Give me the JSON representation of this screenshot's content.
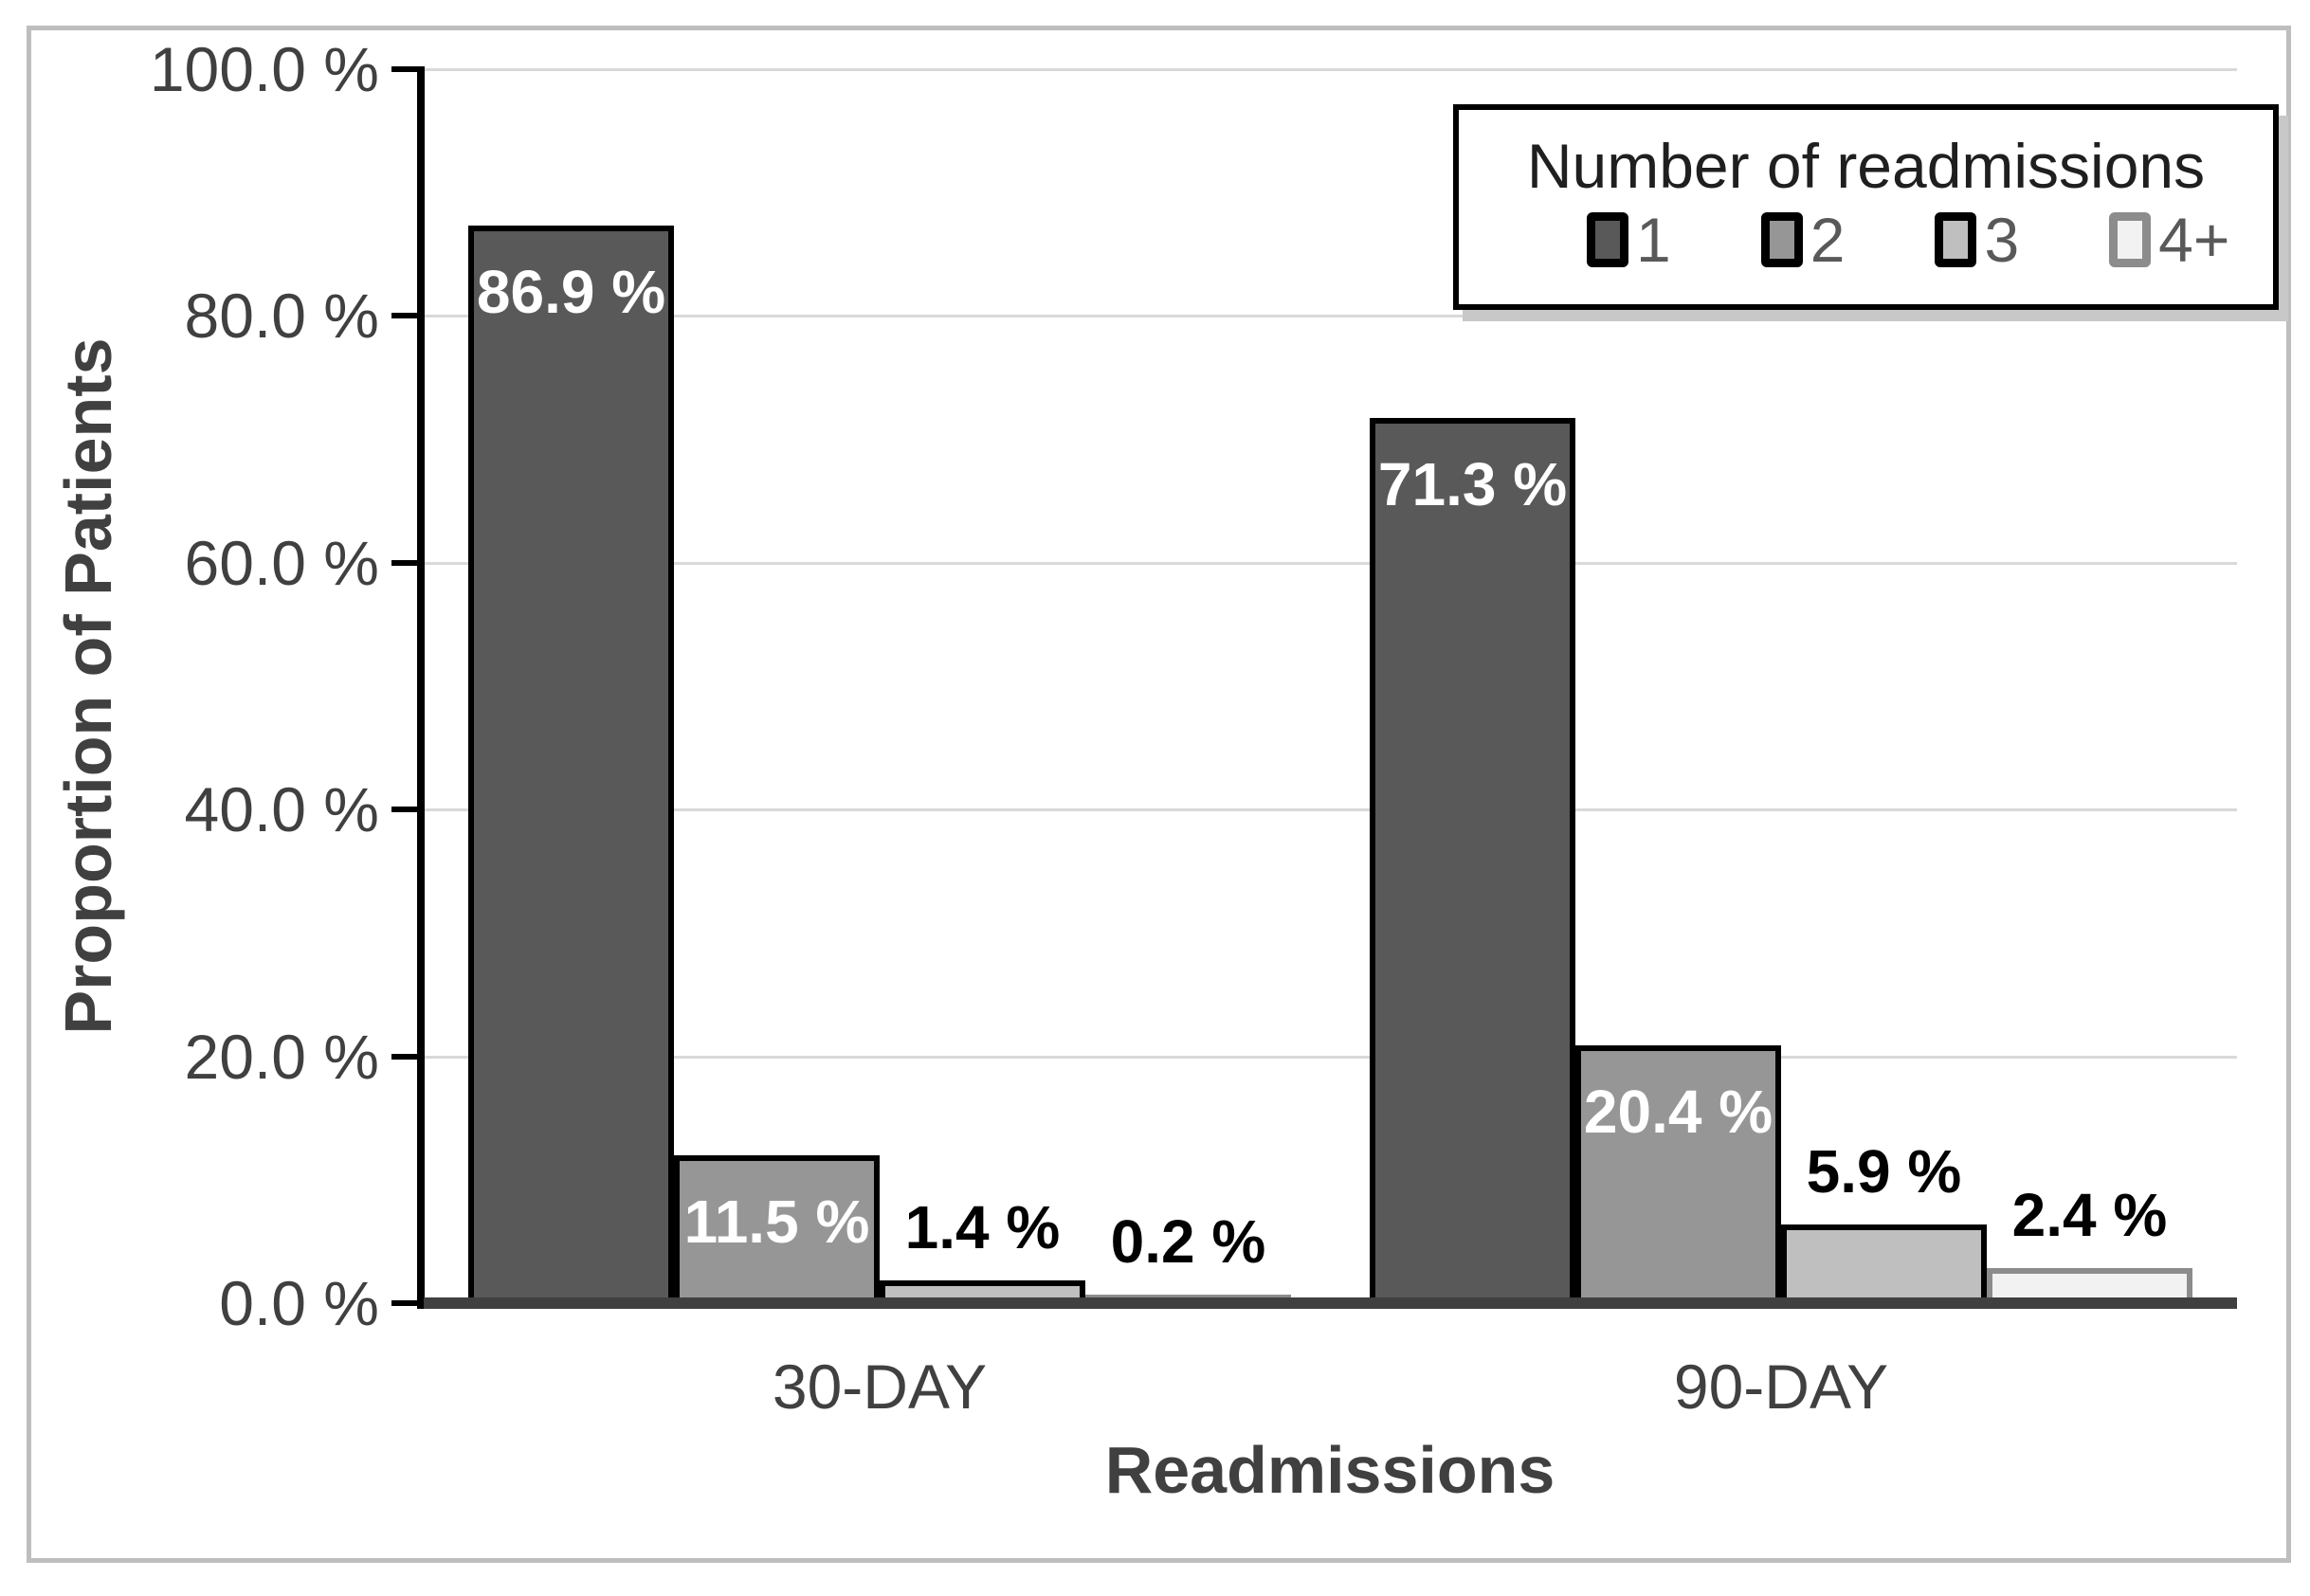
{
  "frame": {
    "border_color": "#BEBEBE",
    "background": "#FFFFFF"
  },
  "chart_data": {
    "type": "bar",
    "categories": [
      "30-DAY",
      "90-DAY"
    ],
    "series": [
      {
        "name": "1",
        "values": [
          86.9,
          71.3
        ],
        "labels": [
          "86.9 %",
          "71.3 %"
        ],
        "fill": "#595959",
        "border": "#000000",
        "label_color": "#FFFFFF",
        "label_position": "inside"
      },
      {
        "name": "2",
        "values": [
          11.5,
          20.4
        ],
        "labels": [
          "11.5 %",
          "20.4 %"
        ],
        "fill": "#969696",
        "border": "#000000",
        "label_color": "#FFFFFF",
        "label_position": "inside"
      },
      {
        "name": "3",
        "values": [
          1.4,
          5.9
        ],
        "labels": [
          "1.4 %",
          "5.9 %"
        ],
        "fill": "#BFBFBF",
        "border": "#000000",
        "label_color": "#000000",
        "label_position": "outside"
      },
      {
        "name": "4+",
        "values": [
          0.2,
          2.4
        ],
        "labels": [
          "0.2 %",
          "2.4 %"
        ],
        "fill": "#F2F2F2",
        "border": "#8C8C8C",
        "label_color": "#000000",
        "label_position": "outside"
      }
    ],
    "xlabel": "Readmissions",
    "ylabel": "Proportion of Patients",
    "ylim": [
      0,
      100
    ],
    "yticks": [
      {
        "value": 100,
        "label": "100.0 %"
      },
      {
        "value": 80,
        "label": "80.0 %"
      },
      {
        "value": 60,
        "label": "60.0 %"
      },
      {
        "value": 40,
        "label": "40.0 %"
      },
      {
        "value": 20,
        "label": "20.0 %"
      },
      {
        "value": 0,
        "label": "0.0 %"
      }
    ],
    "grid": true,
    "gridline_color": "#D9D9D9",
    "axis_color": "#000000",
    "baseline_color": "#404040",
    "text_color": "#404040",
    "legend": {
      "title": "Number of readmissions",
      "position": "top-right",
      "items": [
        {
          "label": "1",
          "fill": "#595959",
          "border": "#000000"
        },
        {
          "label": "2",
          "fill": "#969696",
          "border": "#000000"
        },
        {
          "label": "3",
          "fill": "#BFBFBF",
          "border": "#000000"
        },
        {
          "label": "4+",
          "fill": "#F2F2F2",
          "border": "#8C8C8C"
        }
      ]
    }
  }
}
